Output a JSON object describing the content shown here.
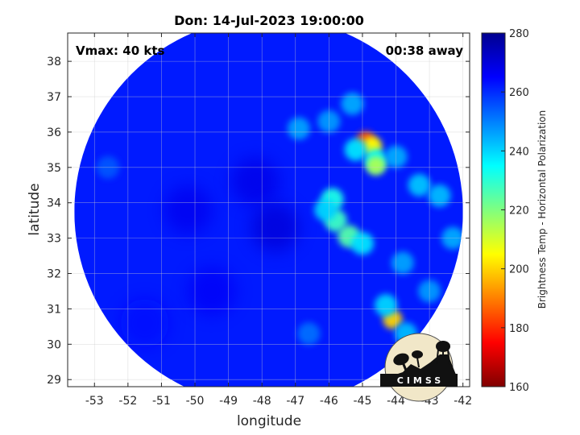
{
  "chart_data": {
    "type": "heatmap",
    "title": "Don: 14-Jul-2023 19:00:00",
    "xlabel": "longitude",
    "ylabel": "latitude",
    "xlim": [
      -53.8,
      -41.8
    ],
    "ylim": [
      28.8,
      38.8
    ],
    "xticks": [
      -53,
      -52,
      -51,
      -50,
      -49,
      -48,
      -47,
      -46,
      -45,
      -44,
      -43,
      -42
    ],
    "yticks": [
      29,
      30,
      31,
      32,
      33,
      34,
      35,
      36,
      37,
      38
    ],
    "grid": true,
    "annotations": {
      "vmax": "Vmax: 40 kts",
      "time_offset": "00:38 away"
    },
    "colorbar": {
      "label": "Brightness Temp - Horizontal Polarization",
      "min": 160,
      "max": 280,
      "ticks": [
        160,
        180,
        200,
        220,
        240,
        260,
        280
      ],
      "colormap": "jet"
    },
    "swath": {
      "center_lon": -47.8,
      "center_lat": 33.75,
      "radius_deg": 5.8
    },
    "background_tb": 262,
    "features": [
      {
        "lon": -44.9,
        "lat": 35.75,
        "tb": 185
      },
      {
        "lon": -44.7,
        "lat": 35.6,
        "tb": 205
      },
      {
        "lon": -44.6,
        "lat": 35.2,
        "tb": 235
      },
      {
        "lon": -45.2,
        "lat": 35.5,
        "tb": 238
      },
      {
        "lon": -44.0,
        "lat": 35.3,
        "tb": 245
      },
      {
        "lon": -44.6,
        "lat": 35.05,
        "tb": 215
      },
      {
        "lon": -44.1,
        "lat": 30.7,
        "tb": 200
      },
      {
        "lon": -44.3,
        "lat": 31.1,
        "tb": 240
      },
      {
        "lon": -43.7,
        "lat": 30.3,
        "tb": 243
      },
      {
        "lon": -45.9,
        "lat": 34.1,
        "tb": 232
      },
      {
        "lon": -45.8,
        "lat": 33.5,
        "tb": 228
      },
      {
        "lon": -45.4,
        "lat": 33.05,
        "tb": 225
      },
      {
        "lon": -45.0,
        "lat": 32.85,
        "tb": 238
      },
      {
        "lon": -46.1,
        "lat": 33.8,
        "tb": 240
      },
      {
        "lon": -45.3,
        "lat": 36.8,
        "tb": 245
      },
      {
        "lon": -46.0,
        "lat": 36.3,
        "tb": 247
      },
      {
        "lon": -46.9,
        "lat": 36.1,
        "tb": 246
      },
      {
        "lon": -43.3,
        "lat": 34.5,
        "tb": 242
      },
      {
        "lon": -42.7,
        "lat": 34.2,
        "tb": 243
      },
      {
        "lon": -42.3,
        "lat": 33.0,
        "tb": 245
      },
      {
        "lon": -43.8,
        "lat": 32.3,
        "tb": 246
      },
      {
        "lon": -43.0,
        "lat": 31.5,
        "tb": 247
      },
      {
        "lon": -48.2,
        "lat": 34.6,
        "tb": 268
      },
      {
        "lon": -47.6,
        "lat": 33.3,
        "tb": 270
      },
      {
        "lon": -50.2,
        "lat": 33.8,
        "tb": 267
      },
      {
        "lon": -49.5,
        "lat": 31.5,
        "tb": 266
      },
      {
        "lon": -51.5,
        "lat": 30.6,
        "tb": 264
      },
      {
        "lon": -46.6,
        "lat": 30.3,
        "tb": 252
      },
      {
        "lon": -52.6,
        "lat": 35.0,
        "tb": 255
      }
    ]
  },
  "logo": {
    "text": "CIMSS"
  }
}
